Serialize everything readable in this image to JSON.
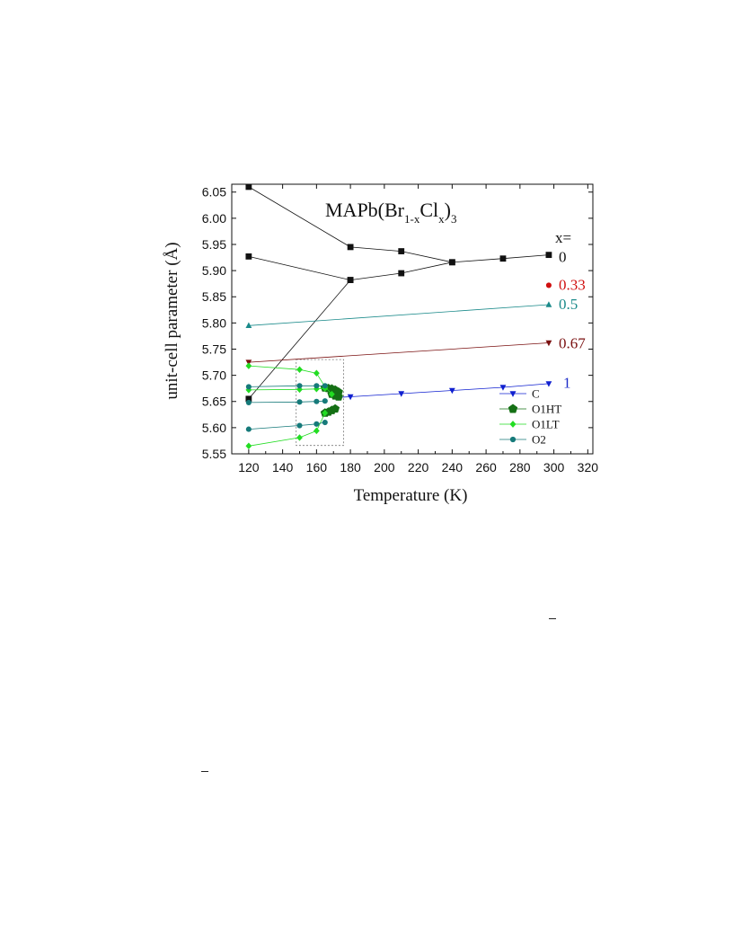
{
  "chart_data": {
    "type": "scatter",
    "title_main": "MAPb(Br",
    "title_sub1": "1-x",
    "title_mid": "Cl",
    "title_sub2": "x",
    "title_end": ")",
    "title_sub3": "3",
    "xlabel": "Temperature (K)",
    "ylabel": "unit-cell parameter (Å)",
    "xlim": [
      110,
      323
    ],
    "ylim": [
      5.55,
      6.065
    ],
    "x_ticks": [
      120,
      140,
      160,
      180,
      200,
      220,
      240,
      260,
      280,
      300,
      320
    ],
    "y_ticks": [
      5.55,
      5.6,
      5.65,
      5.7,
      5.75,
      5.8,
      5.85,
      5.9,
      5.95,
      6.0,
      6.05
    ],
    "y_tick_labels": [
      "5.55",
      "5.60",
      "5.65",
      "5.70",
      "5.75",
      "5.80",
      "5.85",
      "5.90",
      "5.95",
      "6.00",
      "6.05"
    ],
    "x_header": "x=",
    "composition_labels": [
      {
        "text": "0",
        "y": 5.925,
        "color": "#111111"
      },
      {
        "text": "0.33",
        "y": 5.872,
        "color": "#d01010"
      },
      {
        "text": "0.5",
        "y": 5.835,
        "color": "#1a8a8a"
      },
      {
        "text": "0.67",
        "y": 5.76,
        "color": "#7a1010"
      },
      {
        "text": "1",
        "y": 5.685,
        "color": "#1c2cc8"
      }
    ],
    "legend": [
      {
        "name": "C",
        "marker": "tri-down",
        "color": "#1020d0"
      },
      {
        "name": "O1HT",
        "marker": "pentagon",
        "color": "#157015"
      },
      {
        "name": "O1LT",
        "marker": "diamond",
        "color": "#22dd22"
      },
      {
        "name": "O2",
        "marker": "circle",
        "color": "#167a7a"
      }
    ],
    "series": [
      {
        "composition": "0",
        "marker": "square",
        "color": "#111111",
        "lines": [
          [
            [
              120,
              6.06
            ],
            [
              180,
              5.945
            ],
            [
              210,
              5.937
            ],
            [
              240,
              5.916
            ]
          ],
          [
            [
              120,
              5.927
            ],
            [
              180,
              5.882
            ],
            [
              210,
              5.895
            ],
            [
              240,
              5.916
            ],
            [
              270,
              5.923
            ],
            [
              297,
              5.93
            ]
          ],
          [
            [
              120,
              5.655
            ],
            [
              180,
              5.882
            ]
          ]
        ]
      },
      {
        "composition": "0.33",
        "marker": "circle",
        "color": "#d01010",
        "lines": [
          [
            [
              297,
              5.872
            ]
          ]
        ]
      },
      {
        "composition": "0.5",
        "marker": "tri-up",
        "color": "#1a8a8a",
        "lines": [
          [
            [
              120,
              5.795
            ],
            [
              297,
              5.835
            ]
          ]
        ]
      },
      {
        "composition": "0.67",
        "marker": "tri-down",
        "color": "#7a1010",
        "lines": [
          [
            [
              120,
              5.725
            ],
            [
              297,
              5.762
            ]
          ]
        ]
      },
      {
        "composition": "1",
        "name": "C",
        "marker": "tri-down",
        "color": "#1020d0",
        "lines": [
          [
            [
              173,
              5.658
            ],
            [
              180,
              5.659
            ],
            [
              210,
              5.665
            ],
            [
              240,
              5.671
            ],
            [
              270,
              5.677
            ],
            [
              297,
              5.684
            ]
          ]
        ]
      },
      {
        "name": "O1HT",
        "marker": "pentagon",
        "color": "#157015",
        "lines": [
          [
            [
              165,
              5.676
            ],
            [
              167,
              5.675
            ],
            [
              169,
              5.674
            ],
            [
              171,
              5.672
            ],
            [
              173,
              5.668
            ]
          ],
          [
            [
              165,
              5.628
            ],
            [
              167,
              5.63
            ],
            [
              169,
              5.633
            ],
            [
              171,
              5.636
            ]
          ],
          [
            [
              169,
              5.664
            ],
            [
              171,
              5.661
            ],
            [
              173,
              5.659
            ]
          ]
        ]
      },
      {
        "name": "O1LT",
        "marker": "diamond",
        "color": "#22dd22",
        "lines": [
          [
            [
              120,
              5.718
            ],
            [
              150,
              5.711
            ],
            [
              160,
              5.704
            ],
            [
              165,
              5.678
            ],
            [
              169,
              5.664
            ]
          ],
          [
            [
              120,
              5.672
            ],
            [
              150,
              5.673
            ],
            [
              160,
              5.674
            ],
            [
              165,
              5.675
            ]
          ],
          [
            [
              120,
              5.565
            ],
            [
              150,
              5.581
            ],
            [
              160,
              5.594
            ],
            [
              165,
              5.628
            ]
          ]
        ]
      },
      {
        "name": "O2",
        "marker": "circle",
        "color": "#167a7a",
        "lines": [
          [
            [
              120,
              5.678
            ],
            [
              150,
              5.68
            ],
            [
              160,
              5.68
            ],
            [
              165,
              5.68
            ]
          ],
          [
            [
              120,
              5.648
            ],
            [
              150,
              5.649
            ],
            [
              160,
              5.65
            ],
            [
              165,
              5.651
            ]
          ],
          [
            [
              120,
              5.597
            ],
            [
              150,
              5.604
            ],
            [
              160,
              5.607
            ],
            [
              165,
              5.61
            ]
          ]
        ]
      }
    ],
    "inset_box": {
      "x": [
        148,
        176
      ],
      "y": [
        5.566,
        5.73
      ]
    }
  }
}
